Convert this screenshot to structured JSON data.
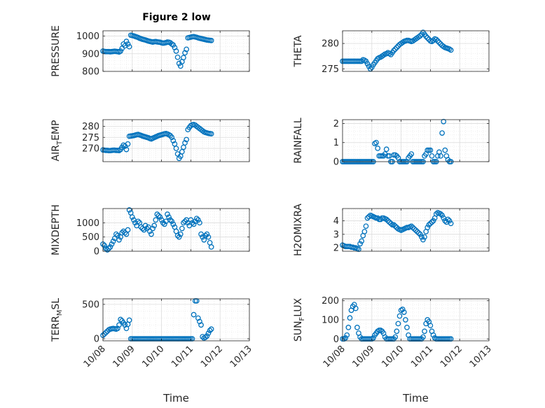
{
  "title": "Figure 2 low",
  "colors": {
    "marker": "#0072BD",
    "axis": "#262626",
    "grid": "#dcdcdc",
    "minor_grid": "#ececec"
  },
  "chart_data": [
    {
      "type": "scatter",
      "ylabel": "PRESSURE",
      "ylim": [
        800,
        1030
      ],
      "yticks": [
        800,
        900,
        1000
      ],
      "xlim": [
        0,
        5
      ],
      "x_tick_labels": [],
      "xlabel": "",
      "grid": "on",
      "x": [
        0.0,
        0.05,
        0.1,
        0.15,
        0.2,
        0.25,
        0.3,
        0.35,
        0.4,
        0.45,
        0.5,
        0.55,
        0.6,
        0.65,
        0.7,
        0.75,
        0.8,
        0.85,
        0.9,
        0.95,
        1.0,
        1.05,
        1.1,
        1.15,
        1.2,
        1.25,
        1.3,
        1.35,
        1.4,
        1.45,
        1.5,
        1.55,
        1.6,
        1.65,
        1.7,
        1.75,
        1.8,
        1.85,
        1.9,
        1.95,
        2.0,
        2.05,
        2.1,
        2.15,
        2.2,
        2.25,
        2.3,
        2.35,
        2.4,
        2.45,
        2.5,
        2.55,
        2.6,
        2.65,
        2.7,
        2.75,
        2.8,
        2.85,
        2.9,
        2.95,
        3.0,
        3.05,
        3.1,
        3.15,
        3.2,
        3.25,
        3.3,
        3.35,
        3.4,
        3.45,
        3.5,
        3.55,
        3.6,
        3.65,
        3.7
      ],
      "y": [
        915,
        913,
        912,
        912,
        912,
        911,
        912,
        913,
        914,
        913,
        912,
        910,
        915,
        930,
        955,
        945,
        970,
        955,
        940,
        1005,
        1003,
        1001,
        998,
        995,
        992,
        988,
        985,
        982,
        980,
        978,
        975,
        972,
        970,
        968,
        966,
        968,
        969,
        967,
        966,
        965,
        962,
        960,
        961,
        963,
        966,
        965,
        962,
        955,
        950,
        935,
        915,
        880,
        845,
        830,
        855,
        878,
        905,
        925,
        990,
        992,
        994,
        996,
        997,
        995,
        993,
        990,
        988,
        986,
        984,
        982,
        980,
        978,
        977,
        976,
        975
      ]
    },
    {
      "type": "scatter",
      "ylabel": "THETA",
      "ylim": [
        274.5,
        282.5
      ],
      "yticks": [
        275,
        280
      ],
      "xlim": [
        0,
        5
      ],
      "x_tick_labels": [],
      "xlabel": "",
      "grid": "on",
      "x": [
        0.0,
        0.05,
        0.1,
        0.15,
        0.2,
        0.25,
        0.3,
        0.35,
        0.4,
        0.45,
        0.5,
        0.55,
        0.6,
        0.65,
        0.7,
        0.75,
        0.8,
        0.85,
        0.9,
        0.95,
        1.0,
        1.05,
        1.1,
        1.15,
        1.2,
        1.25,
        1.3,
        1.35,
        1.4,
        1.45,
        1.5,
        1.55,
        1.6,
        1.65,
        1.7,
        1.75,
        1.8,
        1.85,
        1.9,
        1.95,
        2.0,
        2.05,
        2.1,
        2.15,
        2.2,
        2.25,
        2.3,
        2.35,
        2.4,
        2.45,
        2.5,
        2.55,
        2.6,
        2.65,
        2.7,
        2.75,
        2.8,
        2.85,
        2.9,
        2.95,
        3.0,
        3.05,
        3.1,
        3.15,
        3.2,
        3.25,
        3.3,
        3.35,
        3.4,
        3.45,
        3.5,
        3.55,
        3.6,
        3.65,
        3.7
      ],
      "y": [
        276.5,
        276.5,
        276.5,
        276.5,
        276.5,
        276.5,
        276.5,
        276.5,
        276.5,
        276.5,
        276.5,
        276.5,
        276.5,
        276.5,
        276.8,
        276.7,
        276.5,
        276,
        275.5,
        275,
        275.3,
        275.8,
        276.2,
        276.6,
        277,
        277.2,
        277.3,
        277.5,
        277.7,
        277.9,
        278,
        278.2,
        278,
        277.8,
        278.2,
        278.6,
        278.9,
        279.2,
        279.5,
        279.8,
        280,
        280.2,
        280.4,
        280.5,
        280.6,
        280.6,
        280.5,
        280.4,
        280.5,
        280.7,
        280.9,
        281.1,
        281.3,
        281.5,
        281.8,
        282.2,
        281.8,
        281.4,
        281.1,
        280.8,
        280.5,
        280.4,
        280.6,
        280.9,
        280.8,
        280.5,
        280.2,
        279.9,
        279.6,
        279.4,
        279.2,
        279.1,
        279,
        278.9,
        278.7
      ]
    },
    {
      "type": "scatter",
      "ylabel": "AIR_TEMP",
      "ylabel_main": "AIR",
      "ylabel_sub": "T",
      "ylabel_rest": "EMP",
      "ylim": [
        264,
        283
      ],
      "yticks": [
        270,
        275,
        280
      ],
      "xlim": [
        0,
        5
      ],
      "x_tick_labels": [],
      "xlabel": "",
      "grid": "on",
      "x": [
        0.0,
        0.05,
        0.1,
        0.15,
        0.2,
        0.25,
        0.3,
        0.35,
        0.4,
        0.45,
        0.5,
        0.55,
        0.6,
        0.65,
        0.7,
        0.75,
        0.8,
        0.85,
        0.9,
        0.95,
        1.0,
        1.05,
        1.1,
        1.15,
        1.2,
        1.25,
        1.3,
        1.35,
        1.4,
        1.45,
        1.5,
        1.55,
        1.6,
        1.65,
        1.7,
        1.75,
        1.8,
        1.85,
        1.9,
        1.95,
        2.0,
        2.05,
        2.1,
        2.15,
        2.2,
        2.25,
        2.3,
        2.35,
        2.4,
        2.45,
        2.5,
        2.55,
        2.6,
        2.65,
        2.7,
        2.75,
        2.8,
        2.85,
        2.9,
        2.95,
        3.0,
        3.05,
        3.1,
        3.15,
        3.2,
        3.25,
        3.3,
        3.35,
        3.4,
        3.45,
        3.5,
        3.55,
        3.6,
        3.65,
        3.7
      ],
      "y": [
        269.3,
        269.2,
        269.1,
        269.1,
        269,
        269,
        269.1,
        269.2,
        269.2,
        269.1,
        269.1,
        269,
        269.5,
        270.5,
        271.5,
        271,
        269.5,
        272,
        275.5,
        275.6,
        275.7,
        275.8,
        276,
        276.2,
        276.3,
        276.1,
        275.9,
        275.6,
        275.4,
        275.2,
        275,
        274.8,
        274.5,
        274.3,
        274.6,
        274.9,
        275.2,
        275.5,
        275.8,
        276,
        276.2,
        276.4,
        276.6,
        276.7,
        276.5,
        276.2,
        275.8,
        275,
        273.5,
        272,
        270,
        267.5,
        265.5,
        266.5,
        268.5,
        270.5,
        272.5,
        274,
        278.5,
        279.5,
        280.3,
        280.7,
        280.8,
        280.5,
        280,
        279.5,
        279,
        278.5,
        278,
        277.5,
        277.2,
        277,
        276.8,
        276.7,
        276.6
      ]
    },
    {
      "type": "scatter",
      "ylabel": "RAINFALL",
      "ylim": [
        0,
        2.2
      ],
      "yticks": [
        0,
        1,
        2
      ],
      "xlim": [
        0,
        5
      ],
      "x_tick_labels": [],
      "xlabel": "",
      "grid": "on",
      "x": [
        0.0,
        0.05,
        0.1,
        0.15,
        0.2,
        0.25,
        0.3,
        0.35,
        0.4,
        0.45,
        0.5,
        0.55,
        0.6,
        0.65,
        0.7,
        0.75,
        0.8,
        0.85,
        0.9,
        0.95,
        1.0,
        1.05,
        1.1,
        1.15,
        1.2,
        1.25,
        1.3,
        1.35,
        1.4,
        1.45,
        1.5,
        1.55,
        1.6,
        1.65,
        1.7,
        1.75,
        1.8,
        1.85,
        1.9,
        1.95,
        2.0,
        2.05,
        2.1,
        2.15,
        2.2,
        2.25,
        2.3,
        2.35,
        2.4,
        2.45,
        2.5,
        2.55,
        2.6,
        2.65,
        2.7,
        2.75,
        2.8,
        2.85,
        2.9,
        2.95,
        3.0,
        3.05,
        3.1,
        3.15,
        3.2,
        3.25,
        3.3,
        3.35,
        3.4,
        3.45,
        3.5,
        3.55,
        3.6,
        3.65,
        3.7
      ],
      "y": [
        0,
        0,
        0,
        0,
        0,
        0,
        0,
        0,
        0,
        0,
        0,
        0,
        0,
        0,
        0,
        0,
        0,
        0,
        0,
        0,
        0,
        0,
        0.95,
        1.0,
        0.7,
        0.3,
        0.3,
        0.3,
        0.3,
        0.4,
        0.65,
        0.3,
        0.3,
        0,
        0,
        0.35,
        0.35,
        0.3,
        0.2,
        0,
        0,
        0,
        0,
        0,
        0,
        0.2,
        0.3,
        0.4,
        0,
        0,
        0,
        0,
        0,
        0,
        0,
        0,
        0.3,
        0.4,
        0.6,
        0.6,
        0.6,
        0.3,
        0,
        0,
        0,
        0.3,
        0.5,
        0.3,
        1.5,
        2.1,
        0.6,
        0.3,
        0.1,
        0,
        0
      ]
    },
    {
      "type": "scatter",
      "ylabel": "MIXDEPTH",
      "ylim": [
        0,
        1500
      ],
      "yticks": [
        0,
        500,
        1000
      ],
      "xlim": [
        0,
        5
      ],
      "x_tick_labels": [],
      "xlabel": "",
      "grid": "on",
      "x": [
        0.0,
        0.05,
        0.1,
        0.15,
        0.2,
        0.25,
        0.3,
        0.35,
        0.4,
        0.45,
        0.5,
        0.55,
        0.6,
        0.65,
        0.7,
        0.75,
        0.8,
        0.85,
        0.9,
        0.95,
        1.0,
        1.05,
        1.1,
        1.15,
        1.2,
        1.25,
        1.3,
        1.35,
        1.4,
        1.45,
        1.5,
        1.55,
        1.6,
        1.65,
        1.7,
        1.75,
        1.8,
        1.85,
        1.9,
        1.95,
        2.0,
        2.05,
        2.1,
        2.15,
        2.2,
        2.25,
        2.3,
        2.35,
        2.4,
        2.45,
        2.5,
        2.55,
        2.6,
        2.65,
        2.7,
        2.75,
        2.8,
        2.85,
        2.9,
        2.95,
        3.0,
        3.05,
        3.1,
        3.15,
        3.2,
        3.25,
        3.3,
        3.35,
        3.4,
        3.45,
        3.5,
        3.55,
        3.6,
        3.65,
        3.7
      ],
      "y": [
        250,
        200,
        100,
        50,
        100,
        150,
        250,
        350,
        450,
        600,
        550,
        400,
        500,
        650,
        700,
        650,
        600,
        750,
        1450,
        1350,
        1200,
        1100,
        1000,
        900,
        1050,
        1000,
        850,
        800,
        750,
        900,
        800,
        850,
        700,
        600,
        800,
        900,
        1100,
        1300,
        1250,
        1200,
        1100,
        1000,
        950,
        1050,
        1300,
        1200,
        1100,
        1050,
        950,
        850,
        700,
        550,
        500,
        600,
        800,
        1000,
        1050,
        1100,
        1000,
        900,
        1100,
        1000,
        950,
        1050,
        1150,
        1100,
        1000,
        600,
        500,
        400,
        550,
        600,
        500,
        300,
        150
      ]
    },
    {
      "type": "scatter",
      "ylabel": "H2OMIXRA",
      "ylim": [
        1.75,
        4.9
      ],
      "yticks": [
        2,
        3,
        4
      ],
      "xlim": [
        0,
        5
      ],
      "x_tick_labels": [],
      "xlabel": "",
      "grid": "on",
      "x": [
        0.0,
        0.05,
        0.1,
        0.15,
        0.2,
        0.25,
        0.3,
        0.35,
        0.4,
        0.45,
        0.5,
        0.55,
        0.6,
        0.65,
        0.7,
        0.75,
        0.8,
        0.85,
        0.9,
        0.95,
        1.0,
        1.05,
        1.1,
        1.15,
        1.2,
        1.25,
        1.3,
        1.35,
        1.4,
        1.45,
        1.5,
        1.55,
        1.6,
        1.65,
        1.7,
        1.75,
        1.8,
        1.85,
        1.9,
        1.95,
        2.0,
        2.05,
        2.1,
        2.15,
        2.2,
        2.25,
        2.3,
        2.35,
        2.4,
        2.45,
        2.5,
        2.55,
        2.6,
        2.65,
        2.7,
        2.75,
        2.8,
        2.85,
        2.9,
        2.95,
        3.0,
        3.05,
        3.1,
        3.15,
        3.2,
        3.25,
        3.3,
        3.35,
        3.4,
        3.45,
        3.5,
        3.55,
        3.6,
        3.65,
        3.7
      ],
      "y": [
        2.2,
        2.15,
        2.1,
        2.1,
        2.1,
        2.1,
        2.05,
        2.05,
        2.0,
        2.0,
        1.95,
        1.9,
        2.3,
        2.5,
        2.9,
        3.2,
        3.6,
        4.2,
        4.3,
        4.4,
        4.35,
        4.3,
        4.25,
        4.2,
        4.2,
        4.1,
        4.1,
        4.2,
        4.2,
        4.15,
        4.1,
        4.0,
        3.9,
        3.8,
        3.7,
        3.7,
        3.6,
        3.5,
        3.4,
        3.35,
        3.3,
        3.35,
        3.4,
        3.45,
        3.5,
        3.5,
        3.55,
        3.6,
        3.5,
        3.4,
        3.3,
        3.2,
        3.1,
        3.0,
        2.8,
        2.6,
        2.8,
        3.2,
        3.5,
        3.7,
        3.8,
        3.9,
        4.0,
        4.2,
        4.5,
        4.6,
        4.55,
        4.5,
        4.4,
        4.2,
        4.0,
        3.9,
        4.1,
        4.0,
        3.8
      ]
    },
    {
      "type": "scatter",
      "ylabel": "TERR_MSL",
      "ylabel_main": "TERR",
      "ylabel_sub": "M",
      "ylabel_rest": "SL",
      "ylim": [
        -30,
        580
      ],
      "yticks": [
        0,
        500
      ],
      "xlim": [
        0,
        5
      ],
      "x_tick_labels": [
        "10/08",
        "10/09",
        "10/10",
        "10/11",
        "10/12",
        "10/13"
      ],
      "xlabel": "Time",
      "grid": "on",
      "x": [
        0.0,
        0.05,
        0.1,
        0.15,
        0.2,
        0.25,
        0.3,
        0.35,
        0.4,
        0.45,
        0.5,
        0.55,
        0.6,
        0.65,
        0.7,
        0.75,
        0.8,
        0.85,
        0.9,
        0.95,
        1.0,
        1.05,
        1.1,
        1.15,
        1.2,
        1.25,
        1.3,
        1.35,
        1.4,
        1.45,
        1.5,
        1.55,
        1.6,
        1.65,
        1.7,
        1.75,
        1.8,
        1.85,
        1.9,
        1.95,
        2.0,
        2.05,
        2.1,
        2.15,
        2.2,
        2.25,
        2.3,
        2.35,
        2.4,
        2.45,
        2.5,
        2.55,
        2.6,
        2.65,
        2.7,
        2.75,
        2.8,
        2.85,
        2.9,
        2.95,
        3.0,
        3.05,
        3.1,
        3.15,
        3.2,
        3.25,
        3.3,
        3.35,
        3.4,
        3.45,
        3.5,
        3.55,
        3.6,
        3.65,
        3.7
      ],
      "y": [
        50,
        70,
        90,
        110,
        130,
        140,
        145,
        150,
        145,
        140,
        150,
        200,
        280,
        260,
        230,
        200,
        150,
        210,
        270,
        0,
        0,
        0,
        0,
        0,
        0,
        0,
        0,
        0,
        0,
        0,
        0,
        0,
        0,
        0,
        0,
        0,
        0,
        0,
        0,
        0,
        0,
        0,
        0,
        0,
        0,
        0,
        0,
        0,
        0,
        0,
        0,
        0,
        0,
        0,
        0,
        0,
        0,
        0,
        0,
        0,
        0,
        0,
        350,
        550,
        550,
        300,
        250,
        200,
        30,
        10,
        20,
        40,
        80,
        120,
        140
      ]
    },
    {
      "type": "scatter",
      "ylabel": "SUN_FLUX",
      "ylabel_main": "SUN",
      "ylabel_sub": "F",
      "ylabel_rest": "LUX",
      "ylim": [
        -10,
        210
      ],
      "yticks": [
        0,
        100,
        200
      ],
      "xlim": [
        0,
        5
      ],
      "x_tick_labels": [
        "10/08",
        "10/09",
        "10/10",
        "10/11",
        "10/12",
        "10/13"
      ],
      "xlabel": "Time",
      "grid": "on",
      "x": [
        0.0,
        0.05,
        0.1,
        0.15,
        0.2,
        0.25,
        0.3,
        0.35,
        0.4,
        0.45,
        0.5,
        0.55,
        0.6,
        0.65,
        0.7,
        0.75,
        0.8,
        0.85,
        0.9,
        0.95,
        1.0,
        1.05,
        1.1,
        1.15,
        1.2,
        1.25,
        1.3,
        1.35,
        1.4,
        1.45,
        1.5,
        1.55,
        1.6,
        1.65,
        1.7,
        1.75,
        1.8,
        1.85,
        1.9,
        1.95,
        2.0,
        2.05,
        2.1,
        2.15,
        2.2,
        2.25,
        2.3,
        2.35,
        2.4,
        2.45,
        2.5,
        2.55,
        2.6,
        2.65,
        2.7,
        2.75,
        2.8,
        2.85,
        2.9,
        2.95,
        3.0,
        3.05,
        3.1,
        3.15,
        3.2,
        3.25,
        3.3,
        3.35,
        3.4,
        3.45,
        3.5,
        3.55,
        3.6,
        3.65,
        3.7
      ],
      "y": [
        0,
        0,
        5,
        20,
        60,
        110,
        150,
        170,
        180,
        160,
        60,
        30,
        10,
        0,
        0,
        0,
        0,
        0,
        0,
        0,
        0,
        5,
        20,
        30,
        40,
        45,
        45,
        40,
        30,
        10,
        0,
        0,
        0,
        0,
        0,
        0,
        10,
        40,
        80,
        120,
        150,
        155,
        140,
        100,
        60,
        20,
        0,
        0,
        0,
        0,
        0,
        0,
        0,
        0,
        0,
        10,
        40,
        80,
        100,
        90,
        70,
        40,
        20,
        5,
        0,
        0,
        0,
        0,
        0,
        0,
        0,
        0,
        0,
        0,
        0
      ]
    }
  ]
}
